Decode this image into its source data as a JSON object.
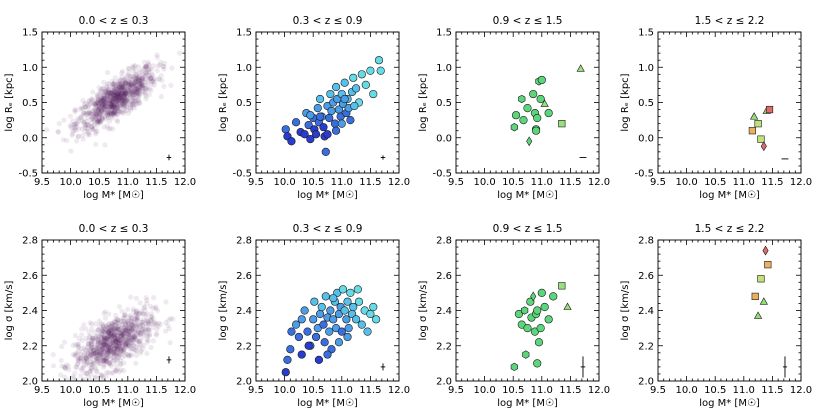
{
  "figure": {
    "colors": {
      "density": "#4b1a5e",
      "bin2_fills": [
        "#2a3ccf",
        "#3a6ee0",
        "#4a9de6",
        "#55c0ea",
        "#66dbe8"
      ],
      "bin3_fill": "#5cd67a",
      "bin3_fill_alt": "#98e07a",
      "bin4_fills": [
        "#e06a6a",
        "#e8b060",
        "#c0e078",
        "#90de78"
      ],
      "outline": "#1a1a1a"
    }
  },
  "chart_data": [
    {
      "id": "re-bin1",
      "type": "scatter",
      "row": 0,
      "col": 0,
      "style": "density",
      "title": "0.0 < z ≤ 0.3",
      "xlabel": "log M* [M☉]",
      "ylabel": "log Rₑ [kpc]",
      "xlim": [
        9.5,
        12.0
      ],
      "ylim": [
        -0.5,
        1.5
      ],
      "xticks": [
        "9.5",
        "10.0",
        "10.5",
        "11.0",
        "11.5",
        "12.0"
      ],
      "yticks": [
        "-0.5",
        "0.0",
        "0.5",
        "1.0",
        "1.5"
      ],
      "density_model": {
        "center": [
          10.8,
          0.55
        ],
        "sigma_x": 0.35,
        "sigma_y": 0.22,
        "correlation": 0.78,
        "n": 900
      },
      "errorbar": {
        "x": 11.72,
        "y": -0.28,
        "xerr": 0.04,
        "yerr": 0.04
      }
    },
    {
      "id": "re-bin2",
      "type": "scatter",
      "row": 0,
      "col": 1,
      "style": "circles",
      "title": "0.3 < z ≤ 0.9",
      "xlabel": "log M* [M☉]",
      "ylabel": "log Rₑ [kpc]",
      "xlim": [
        9.5,
        12.0
      ],
      "ylim": [
        -0.5,
        1.5
      ],
      "xticks": [
        "9.5",
        "10.0",
        "10.5",
        "11.0",
        "11.5",
        "12.0"
      ],
      "yticks": [
        "-0.5",
        "0.0",
        "0.5",
        "1.0",
        "1.5"
      ],
      "points": [
        {
          "x": 10.02,
          "y": 0.12,
          "c": 1
        },
        {
          "x": 10.05,
          "y": 0.02,
          "c": 0
        },
        {
          "x": 10.12,
          "y": -0.05,
          "c": 0
        },
        {
          "x": 10.2,
          "y": 0.22,
          "c": 1
        },
        {
          "x": 10.28,
          "y": 0.08,
          "c": 0
        },
        {
          "x": 10.35,
          "y": 0.05,
          "c": 0
        },
        {
          "x": 10.38,
          "y": 0.35,
          "c": 2
        },
        {
          "x": 10.42,
          "y": 0.18,
          "c": 1
        },
        {
          "x": 10.45,
          "y": -0.02,
          "c": 0
        },
        {
          "x": 10.5,
          "y": 0.28,
          "c": 1
        },
        {
          "x": 10.52,
          "y": 0.12,
          "c": 0
        },
        {
          "x": 10.55,
          "y": 0.05,
          "c": 0
        },
        {
          "x": 10.58,
          "y": 0.42,
          "c": 2
        },
        {
          "x": 10.6,
          "y": 0.22,
          "c": 1
        },
        {
          "x": 10.62,
          "y": 0.55,
          "c": 3
        },
        {
          "x": 10.65,
          "y": 0.3,
          "c": 2
        },
        {
          "x": 10.68,
          "y": 0.15,
          "c": 0
        },
        {
          "x": 10.7,
          "y": 0.02,
          "c": 0
        },
        {
          "x": 10.72,
          "y": -0.2,
          "c": 1
        },
        {
          "x": 10.75,
          "y": 0.45,
          "c": 2
        },
        {
          "x": 10.78,
          "y": 0.28,
          "c": 1
        },
        {
          "x": 10.8,
          "y": 0.62,
          "c": 3
        },
        {
          "x": 10.82,
          "y": 0.38,
          "c": 2
        },
        {
          "x": 10.85,
          "y": 0.5,
          "c": 2
        },
        {
          "x": 10.88,
          "y": 0.2,
          "c": 1
        },
        {
          "x": 10.9,
          "y": 0.72,
          "c": 3
        },
        {
          "x": 10.92,
          "y": 0.55,
          "c": 2
        },
        {
          "x": 10.95,
          "y": 0.4,
          "c": 2
        },
        {
          "x": 10.98,
          "y": 0.3,
          "c": 1
        },
        {
          "x": 11.0,
          "y": 0.62,
          "c": 3
        },
        {
          "x": 11.02,
          "y": 0.48,
          "c": 2
        },
        {
          "x": 11.05,
          "y": 0.78,
          "c": 3
        },
        {
          "x": 11.08,
          "y": 0.35,
          "c": 1
        },
        {
          "x": 11.1,
          "y": 0.55,
          "c": 3
        },
        {
          "x": 11.12,
          "y": 0.42,
          "c": 2
        },
        {
          "x": 11.15,
          "y": 0.25,
          "c": 1
        },
        {
          "x": 11.18,
          "y": 0.65,
          "c": 3
        },
        {
          "x": 11.2,
          "y": 0.85,
          "c": 4
        },
        {
          "x": 11.25,
          "y": 0.7,
          "c": 3
        },
        {
          "x": 11.3,
          "y": 0.5,
          "c": 4
        },
        {
          "x": 11.35,
          "y": 0.9,
          "c": 4
        },
        {
          "x": 11.42,
          "y": 0.75,
          "c": 4
        },
        {
          "x": 11.5,
          "y": 0.95,
          "c": 4
        },
        {
          "x": 11.55,
          "y": 0.62,
          "c": 4
        },
        {
          "x": 11.65,
          "y": 1.1,
          "c": 4
        },
        {
          "x": 11.68,
          "y": 0.95,
          "c": 4
        },
        {
          "x": 10.62,
          "y": 0.3,
          "c": 1
        },
        {
          "x": 10.9,
          "y": 0.1,
          "c": 1
        },
        {
          "x": 11.0,
          "y": 0.2,
          "c": 2
        },
        {
          "x": 11.05,
          "y": 0.55,
          "c": 2
        },
        {
          "x": 10.45,
          "y": 0.32,
          "c": 2
        },
        {
          "x": 11.22,
          "y": 0.45,
          "c": 3
        },
        {
          "x": 10.75,
          "y": 0.05,
          "c": 0
        }
      ],
      "errorbar": {
        "x": 11.72,
        "y": -0.28,
        "xerr": 0.04,
        "yerr": 0.03
      }
    },
    {
      "id": "re-bin3",
      "type": "scatter",
      "row": 0,
      "col": 2,
      "style": "mixed",
      "title": "0.9 < z ≤ 1.5",
      "xlabel": "log M* [M☉]",
      "ylabel": "log Rₑ [kpc]",
      "xlim": [
        9.5,
        12.0
      ],
      "ylim": [
        -0.5,
        1.5
      ],
      "xticks": [
        "9.5",
        "10.0",
        "10.5",
        "11.0",
        "11.5",
        "12.0"
      ],
      "yticks": [
        "-0.5",
        "0.0",
        "0.5",
        "1.0",
        "1.5"
      ],
      "points": [
        {
          "x": 10.52,
          "y": 0.15,
          "m": "hexagon"
        },
        {
          "x": 10.55,
          "y": 0.32,
          "m": "circle"
        },
        {
          "x": 10.65,
          "y": 0.55,
          "m": "hexagon"
        },
        {
          "x": 10.68,
          "y": 0.25,
          "m": "circle"
        },
        {
          "x": 10.75,
          "y": 0.42,
          "m": "circle"
        },
        {
          "x": 10.78,
          "y": -0.05,
          "m": "diamond"
        },
        {
          "x": 10.85,
          "y": 0.62,
          "m": "circle"
        },
        {
          "x": 10.88,
          "y": 0.35,
          "m": "circle"
        },
        {
          "x": 10.9,
          "y": 0.12,
          "m": "circle"
        },
        {
          "x": 10.92,
          "y": 0.28,
          "m": "circle"
        },
        {
          "x": 10.95,
          "y": 0.8,
          "m": "hexagon"
        },
        {
          "x": 10.98,
          "y": 0.55,
          "m": "circle"
        },
        {
          "x": 11.0,
          "y": 0.82,
          "m": "circle"
        },
        {
          "x": 11.05,
          "y": 0.48,
          "m": "triangle"
        },
        {
          "x": 11.12,
          "y": 0.35,
          "m": "circle"
        },
        {
          "x": 11.35,
          "y": 0.2,
          "m": "square"
        },
        {
          "x": 11.68,
          "y": 0.98,
          "m": "triangle"
        },
        {
          "x": 10.9,
          "y": 0.1,
          "m": "circle"
        }
      ],
      "errorbar": {
        "x": 11.72,
        "y": -0.28,
        "xerr": 0.06,
        "yerr": 0.0
      }
    },
    {
      "id": "re-bin4",
      "type": "scatter",
      "row": 0,
      "col": 3,
      "style": "mixed",
      "title": "1.5 < z ≤ 2.2",
      "xlabel": "log M* [M☉]",
      "ylabel": "log Rₑ [kpc]",
      "xlim": [
        9.5,
        12.0
      ],
      "ylim": [
        -0.5,
        1.5
      ],
      "xticks": [
        "9.5",
        "10.0",
        "10.5",
        "11.0",
        "11.5",
        "12.0"
      ],
      "yticks": [
        "-0.5",
        "0.0",
        "0.5",
        "1.0",
        "1.5"
      ],
      "points": [
        {
          "x": 11.15,
          "y": 0.1,
          "m": "square",
          "c": 1
        },
        {
          "x": 11.18,
          "y": 0.3,
          "m": "triangle",
          "c": 3
        },
        {
          "x": 11.25,
          "y": 0.2,
          "m": "square",
          "c": 2
        },
        {
          "x": 11.3,
          "y": -0.02,
          "m": "square",
          "c": 2
        },
        {
          "x": 11.35,
          "y": -0.12,
          "m": "diamond",
          "c": 0
        },
        {
          "x": 11.4,
          "y": 0.38,
          "m": "triangle",
          "c": 3
        },
        {
          "x": 11.45,
          "y": 0.4,
          "m": "square",
          "c": 0
        }
      ],
      "errorbar": {
        "x": 11.72,
        "y": -0.3,
        "xerr": 0.06,
        "yerr": 0.0
      }
    },
    {
      "id": "sigma-bin1",
      "type": "scatter",
      "row": 1,
      "col": 0,
      "style": "density",
      "title": "0.0 < z ≤ 0.3",
      "xlabel": "log M* [M☉]",
      "ylabel": "log σ [km/s]",
      "xlim": [
        9.5,
        12.0
      ],
      "ylim": [
        2.0,
        2.8
      ],
      "xticks": [
        "9.5",
        "10.0",
        "10.5",
        "11.0",
        "11.5",
        "12.0"
      ],
      "yticks": [
        "2.0",
        "2.2",
        "2.4",
        "2.6",
        "2.8"
      ],
      "density_model": {
        "center": [
          10.75,
          2.22
        ],
        "sigma_x": 0.35,
        "sigma_y": 0.09,
        "correlation": 0.6,
        "n": 900
      },
      "errorbar": {
        "x": 11.72,
        "y": 2.12,
        "xerr": 0.04,
        "yerr": 0.02
      }
    },
    {
      "id": "sigma-bin2",
      "type": "scatter",
      "row": 1,
      "col": 1,
      "style": "circles",
      "title": "0.3 < z ≤ 0.9",
      "xlabel": "log M* [M☉]",
      "ylabel": "log σ [km/s]",
      "xlim": [
        9.5,
        12.0
      ],
      "ylim": [
        2.0,
        2.8
      ],
      "xticks": [
        "9.5",
        "10.0",
        "10.5",
        "11.0",
        "11.5",
        "12.0"
      ],
      "yticks": [
        "2.0",
        "2.2",
        "2.4",
        "2.6",
        "2.8"
      ],
      "points": [
        {
          "x": 10.02,
          "y": 2.05,
          "c": 0
        },
        {
          "x": 10.05,
          "y": 2.12,
          "c": 1
        },
        {
          "x": 10.1,
          "y": 2.18,
          "c": 1
        },
        {
          "x": 10.2,
          "y": 2.32,
          "c": 2
        },
        {
          "x": 10.25,
          "y": 2.25,
          "c": 1
        },
        {
          "x": 10.3,
          "y": 2.15,
          "c": 0
        },
        {
          "x": 10.35,
          "y": 2.4,
          "c": 2
        },
        {
          "x": 10.4,
          "y": 2.28,
          "c": 1
        },
        {
          "x": 10.45,
          "y": 2.2,
          "c": 1
        },
        {
          "x": 10.5,
          "y": 2.35,
          "c": 2
        },
        {
          "x": 10.52,
          "y": 2.45,
          "c": 3
        },
        {
          "x": 10.55,
          "y": 2.25,
          "c": 1
        },
        {
          "x": 10.58,
          "y": 2.3,
          "c": 2
        },
        {
          "x": 10.6,
          "y": 2.12,
          "c": 0
        },
        {
          "x": 10.62,
          "y": 2.38,
          "c": 2
        },
        {
          "x": 10.65,
          "y": 2.42,
          "c": 3
        },
        {
          "x": 10.68,
          "y": 2.32,
          "c": 1
        },
        {
          "x": 10.7,
          "y": 2.22,
          "c": 1
        },
        {
          "x": 10.72,
          "y": 2.48,
          "c": 3
        },
        {
          "x": 10.75,
          "y": 2.36,
          "c": 2
        },
        {
          "x": 10.78,
          "y": 2.28,
          "c": 2
        },
        {
          "x": 10.8,
          "y": 2.4,
          "c": 2
        },
        {
          "x": 10.82,
          "y": 2.18,
          "c": 1
        },
        {
          "x": 10.85,
          "y": 2.35,
          "c": 2
        },
        {
          "x": 10.88,
          "y": 2.45,
          "c": 3
        },
        {
          "x": 10.9,
          "y": 2.3,
          "c": 2
        },
        {
          "x": 10.92,
          "y": 2.5,
          "c": 3
        },
        {
          "x": 10.95,
          "y": 2.38,
          "c": 2
        },
        {
          "x": 10.98,
          "y": 2.42,
          "c": 2
        },
        {
          "x": 11.0,
          "y": 2.28,
          "c": 1
        },
        {
          "x": 11.02,
          "y": 2.52,
          "c": 4
        },
        {
          "x": 11.05,
          "y": 2.4,
          "c": 3
        },
        {
          "x": 11.08,
          "y": 2.35,
          "c": 2
        },
        {
          "x": 11.1,
          "y": 2.45,
          "c": 3
        },
        {
          "x": 11.12,
          "y": 2.3,
          "c": 2
        },
        {
          "x": 11.15,
          "y": 2.5,
          "c": 4
        },
        {
          "x": 11.18,
          "y": 2.38,
          "c": 3
        },
        {
          "x": 11.2,
          "y": 2.42,
          "c": 3
        },
        {
          "x": 11.25,
          "y": 2.35,
          "c": 3
        },
        {
          "x": 11.3,
          "y": 2.45,
          "c": 4
        },
        {
          "x": 11.35,
          "y": 2.32,
          "c": 3
        },
        {
          "x": 11.4,
          "y": 2.4,
          "c": 4
        },
        {
          "x": 11.45,
          "y": 2.28,
          "c": 3
        },
        {
          "x": 11.5,
          "y": 2.38,
          "c": 4
        },
        {
          "x": 11.55,
          "y": 2.42,
          "c": 4
        },
        {
          "x": 11.6,
          "y": 2.35,
          "c": 4
        },
        {
          "x": 10.12,
          "y": 2.28,
          "c": 1
        },
        {
          "x": 10.3,
          "y": 2.35,
          "c": 2
        },
        {
          "x": 10.42,
          "y": 2.2,
          "c": 0
        },
        {
          "x": 10.75,
          "y": 2.15,
          "c": 1
        },
        {
          "x": 10.95,
          "y": 2.22,
          "c": 2
        },
        {
          "x": 11.1,
          "y": 2.25,
          "c": 2
        },
        {
          "x": 11.28,
          "y": 2.52,
          "c": 4
        },
        {
          "x": 10.85,
          "y": 2.47,
          "c": 3
        }
      ],
      "errorbar": {
        "x": 11.72,
        "y": 2.08,
        "xerr": 0.04,
        "yerr": 0.02
      }
    },
    {
      "id": "sigma-bin3",
      "type": "scatter",
      "row": 1,
      "col": 2,
      "style": "mixed",
      "title": "0.9 < z ≤ 1.5",
      "xlabel": "log M* [M☉]",
      "ylabel": "log σ [km/s]",
      "xlim": [
        9.5,
        12.0
      ],
      "ylim": [
        2.0,
        2.8
      ],
      "xticks": [
        "9.5",
        "10.0",
        "10.5",
        "11.0",
        "11.5",
        "12.0"
      ],
      "yticks": [
        "2.0",
        "2.2",
        "2.4",
        "2.6",
        "2.8"
      ],
      "points": [
        {
          "x": 10.52,
          "y": 2.08,
          "m": "hexagon"
        },
        {
          "x": 10.6,
          "y": 2.38,
          "m": "circle"
        },
        {
          "x": 10.65,
          "y": 2.32,
          "m": "circle"
        },
        {
          "x": 10.7,
          "y": 2.4,
          "m": "hexagon"
        },
        {
          "x": 10.72,
          "y": 2.15,
          "m": "hexagon"
        },
        {
          "x": 10.75,
          "y": 2.3,
          "m": "circle"
        },
        {
          "x": 10.8,
          "y": 2.45,
          "m": "circle"
        },
        {
          "x": 10.82,
          "y": 2.36,
          "m": "circle"
        },
        {
          "x": 10.85,
          "y": 2.48,
          "m": "diamond"
        },
        {
          "x": 10.88,
          "y": 2.28,
          "m": "circle"
        },
        {
          "x": 10.9,
          "y": 2.38,
          "m": "circle"
        },
        {
          "x": 10.92,
          "y": 2.4,
          "m": "circle"
        },
        {
          "x": 10.95,
          "y": 2.22,
          "m": "circle"
        },
        {
          "x": 10.98,
          "y": 2.3,
          "m": "circle"
        },
        {
          "x": 11.0,
          "y": 2.5,
          "m": "circle"
        },
        {
          "x": 11.05,
          "y": 2.42,
          "m": "circle"
        },
        {
          "x": 11.12,
          "y": 2.35,
          "m": "circle"
        },
        {
          "x": 11.2,
          "y": 2.48,
          "m": "circle"
        },
        {
          "x": 11.35,
          "y": 2.54,
          "m": "square"
        },
        {
          "x": 11.45,
          "y": 2.42,
          "m": "triangle"
        },
        {
          "x": 10.92,
          "y": 2.1,
          "m": "circle"
        }
      ],
      "errorbar": {
        "x": 11.72,
        "y": 2.08,
        "xerr": 0.04,
        "yerr": 0.06
      }
    },
    {
      "id": "sigma-bin4",
      "type": "scatter",
      "row": 1,
      "col": 3,
      "style": "mixed",
      "title": "1.5 < z ≤ 2.2",
      "xlabel": "log M* [M☉]",
      "ylabel": "log σ [km/s]",
      "xlim": [
        9.5,
        12.0
      ],
      "ylim": [
        2.0,
        2.8
      ],
      "xticks": [
        "9.5",
        "10.0",
        "10.5",
        "11.0",
        "11.5",
        "12.0"
      ],
      "yticks": [
        "2.0",
        "2.2",
        "2.4",
        "2.6",
        "2.8"
      ],
      "points": [
        {
          "x": 11.2,
          "y": 2.48,
          "m": "square",
          "c": 1
        },
        {
          "x": 11.25,
          "y": 2.37,
          "m": "triangle",
          "c": 3
        },
        {
          "x": 11.3,
          "y": 2.58,
          "m": "square",
          "c": 2
        },
        {
          "x": 11.35,
          "y": 2.45,
          "m": "triangle",
          "c": 3
        },
        {
          "x": 11.38,
          "y": 2.74,
          "m": "diamond",
          "c": 0
        },
        {
          "x": 11.42,
          "y": 2.66,
          "m": "square",
          "c": 1
        }
      ],
      "errorbar": {
        "x": 11.72,
        "y": 2.08,
        "xerr": 0.03,
        "yerr": 0.06
      }
    }
  ]
}
